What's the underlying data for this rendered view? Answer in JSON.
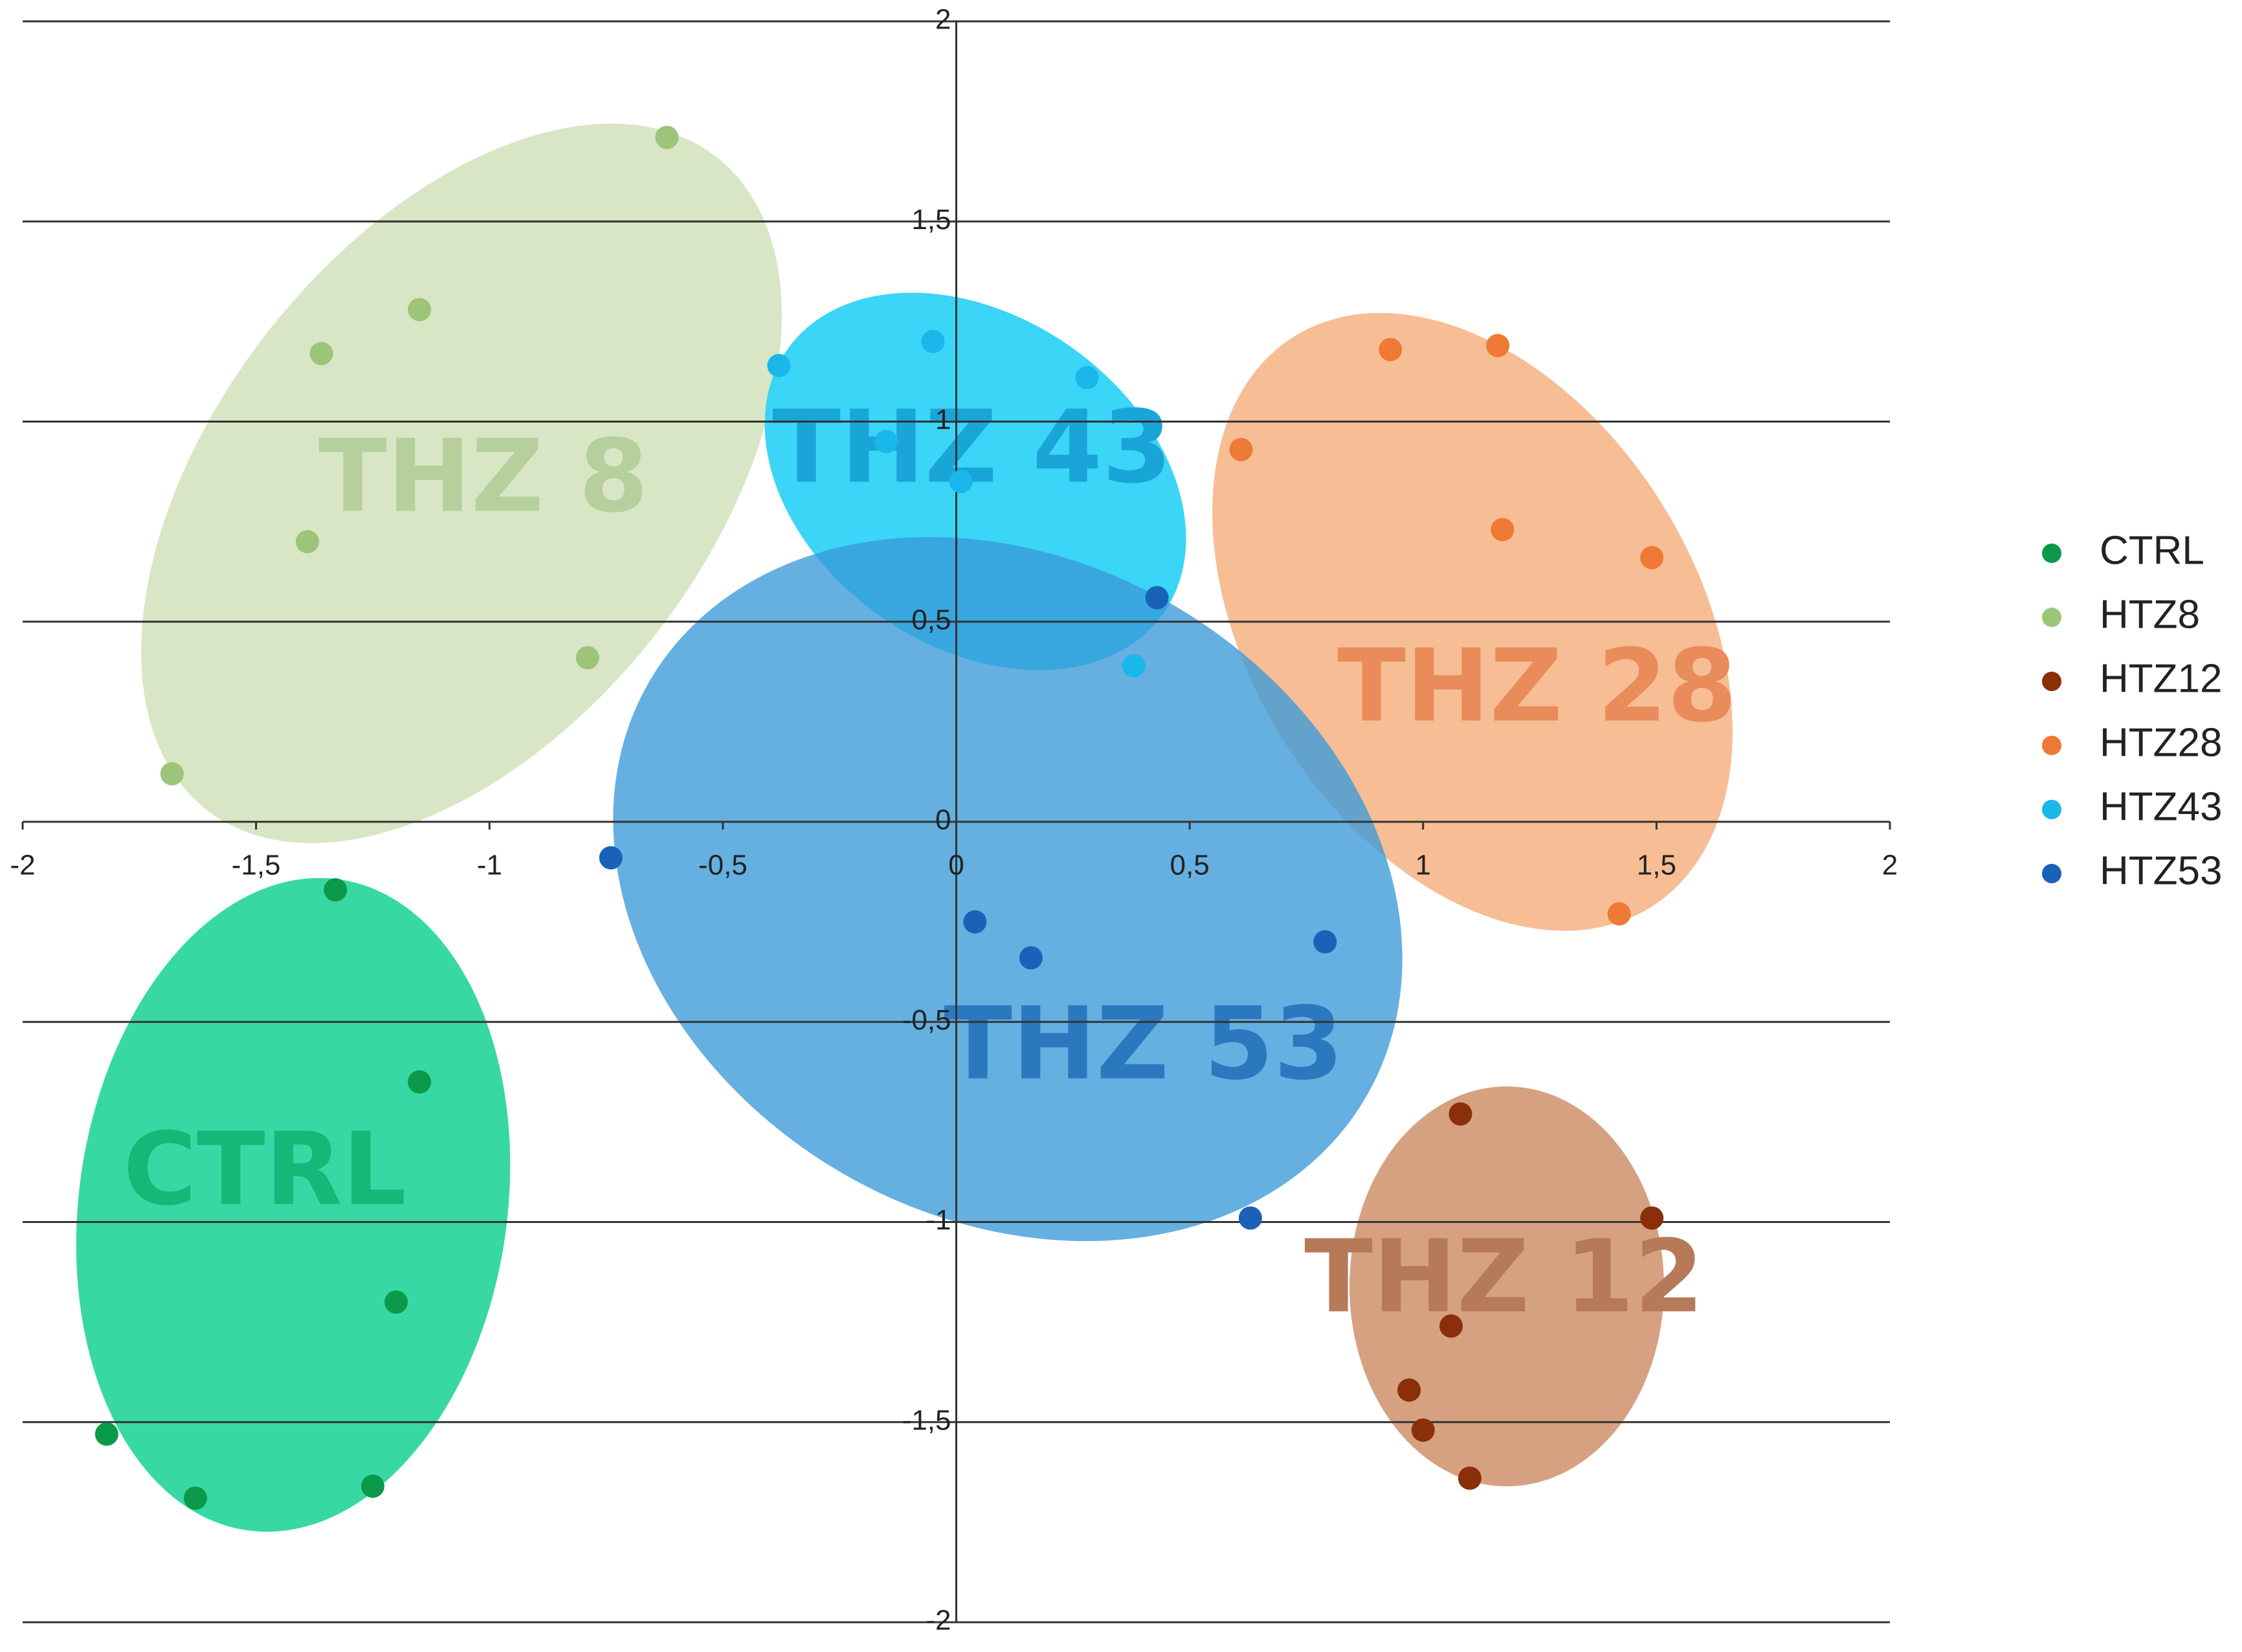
{
  "chart_data": {
    "type": "scatter",
    "xlim": [
      -2,
      2
    ],
    "xticks": [
      -2,
      {
        "value": -1.5,
        "label": "-1,5"
      },
      -1,
      {
        "value": -0.5,
        "label": "-0,5"
      },
      0,
      {
        "value": 0.5,
        "label": "0,5"
      },
      1,
      {
        "value": 1.5,
        "label": "1,5"
      },
      2
    ],
    "ylim": [
      -2,
      2
    ],
    "yticks": [
      -2,
      {
        "value": -1.5,
        "label": "-1,5"
      },
      -1,
      {
        "value": -0.5,
        "label": "-0,5"
      },
      0,
      {
        "value": 0.5,
        "label": "0,5"
      },
      1,
      {
        "value": 1.5,
        "label": "1,5"
      },
      2
    ],
    "grid": true,
    "legend": "right",
    "annotations": [
      "THZ 8",
      "THZ 43",
      "THZ 53",
      "THZ 28",
      "THZ 12",
      "CTRL"
    ],
    "series": [
      {
        "name": "CTRL",
        "color": "#0a9a4a",
        "x": [
          -1.33,
          -1.15,
          -1.2,
          -1.82,
          -1.63,
          -1.25
        ],
        "values": [
          -0.17,
          -0.65,
          -1.2,
          -1.53,
          -1.69,
          -1.66
        ]
      },
      {
        "name": "HTZ8",
        "color": "#9cc57a",
        "x": [
          -0.62,
          -1.15,
          -1.36,
          -1.39,
          -0.79,
          -1.68
        ],
        "values": [
          1.71,
          1.28,
          1.17,
          0.7,
          0.41,
          0.12
        ]
      },
      {
        "name": "HTZ12",
        "color": "#8b2e0a",
        "x": [
          1.08,
          1.49,
          1.06,
          0.97,
          1.0,
          1.1
        ],
        "values": [
          -0.73,
          -0.99,
          -1.26,
          -1.42,
          -1.52,
          -1.64
        ]
      },
      {
        "name": "HTZ28",
        "color": "#ee7a35",
        "x": [
          0.93,
          1.16,
          0.61,
          1.17,
          1.49,
          1.42
        ],
        "values": [
          1.18,
          1.19,
          0.93,
          0.73,
          0.66,
          -0.23
        ]
      },
      {
        "name": "HTZ43",
        "color": "#1ab7ea",
        "x": [
          -0.05,
          -0.38,
          0.28,
          -0.15,
          0.01,
          0.38
        ],
        "values": [
          1.2,
          1.14,
          1.11,
          0.95,
          0.85,
          0.39
        ]
      },
      {
        "name": "HTZ53",
        "color": "#1a62b8",
        "x": [
          0.43,
          -0.74,
          0.04,
          0.16,
          0.79,
          0.63
        ],
        "values": [
          0.56,
          -0.09,
          -0.25,
          -0.34,
          -0.3,
          -0.99
        ]
      }
    ]
  }
}
